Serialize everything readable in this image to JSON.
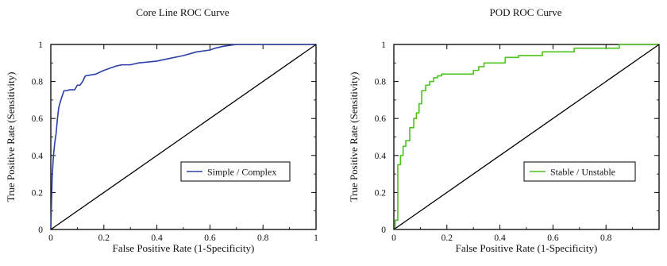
{
  "chart_data": [
    {
      "type": "line",
      "title": "Core Line ROC Curve",
      "xlabel": "False Positive Rate (1-Specificity)",
      "ylabel": "True Positive Rate (Sensitivity)",
      "xlim": [
        0,
        1
      ],
      "ylim": [
        0,
        1
      ],
      "xticks": [
        "0",
        "0.2",
        "0.4",
        "0.6",
        "0.8",
        "1"
      ],
      "yticks": [
        "0",
        "0.2",
        "0.4",
        "0.6",
        "0.8",
        "1"
      ],
      "grid": false,
      "legend_position": "lower-right",
      "series": [
        {
          "name": "Simple / Complex",
          "color": "#2b3fa8",
          "x": [
            0,
            0.005,
            0.01,
            0.015,
            0.02,
            0.025,
            0.03,
            0.04,
            0.05,
            0.06,
            0.07,
            0.09,
            0.1,
            0.11,
            0.12,
            0.13,
            0.15,
            0.17,
            0.2,
            0.22,
            0.25,
            0.27,
            0.3,
            0.33,
            0.4,
            0.45,
            0.5,
            0.55,
            0.6,
            0.62,
            0.65,
            0.7,
            1
          ],
          "y": [
            0,
            0.28,
            0.4,
            0.47,
            0.52,
            0.6,
            0.66,
            0.71,
            0.75,
            0.75,
            0.755,
            0.755,
            0.78,
            0.78,
            0.8,
            0.83,
            0.835,
            0.84,
            0.86,
            0.87,
            0.885,
            0.89,
            0.89,
            0.9,
            0.91,
            0.925,
            0.94,
            0.96,
            0.97,
            0.98,
            0.99,
            1,
            1
          ]
        },
        {
          "name": "diagonal",
          "color": "#000000",
          "x": [
            0,
            1
          ],
          "y": [
            0,
            1
          ]
        }
      ]
    },
    {
      "type": "line",
      "title": "POD ROC Curve",
      "xlabel": "False Positive Rate (1-Specificity)",
      "ylabel": "True Positive Rate (Sensitivity)",
      "xlim": [
        0,
        1
      ],
      "ylim": [
        0,
        1
      ],
      "xticks": [
        "0",
        "0.2",
        "0.4",
        "0.6",
        "0.8"
      ],
      "yticks": [
        "0",
        "0.2",
        "0.4",
        "0.6",
        "0.8",
        "1"
      ],
      "grid": false,
      "legend_position": "lower-right",
      "series": [
        {
          "name": "Stable / Unstable",
          "color": "#4cc21c",
          "x": [
            0,
            0.005,
            0.005,
            0.015,
            0.015,
            0.025,
            0.025,
            0.035,
            0.035,
            0.045,
            0.045,
            0.06,
            0.06,
            0.075,
            0.075,
            0.085,
            0.085,
            0.095,
            0.095,
            0.105,
            0.105,
            0.12,
            0.12,
            0.135,
            0.135,
            0.15,
            0.15,
            0.165,
            0.165,
            0.18,
            0.18,
            0.2,
            0.2,
            0.3,
            0.3,
            0.32,
            0.32,
            0.34,
            0.34,
            0.36,
            0.36,
            0.42,
            0.42,
            0.47,
            0.47,
            0.56,
            0.56,
            0.68,
            0.68,
            0.85,
            0.85,
            1
          ],
          "y": [
            0,
            0,
            0.05,
            0.05,
            0.35,
            0.35,
            0.4,
            0.4,
            0.45,
            0.45,
            0.48,
            0.48,
            0.55,
            0.55,
            0.6,
            0.6,
            0.63,
            0.63,
            0.68,
            0.68,
            0.75,
            0.75,
            0.78,
            0.78,
            0.8,
            0.8,
            0.82,
            0.82,
            0.83,
            0.83,
            0.84,
            0.84,
            0.84,
            0.84,
            0.86,
            0.86,
            0.88,
            0.88,
            0.9,
            0.9,
            0.9,
            0.9,
            0.93,
            0.93,
            0.94,
            0.94,
            0.96,
            0.96,
            0.98,
            0.98,
            1,
            1
          ]
        },
        {
          "name": "diagonal",
          "color": "#000000",
          "x": [
            0,
            1
          ],
          "y": [
            0,
            1
          ]
        }
      ]
    }
  ]
}
